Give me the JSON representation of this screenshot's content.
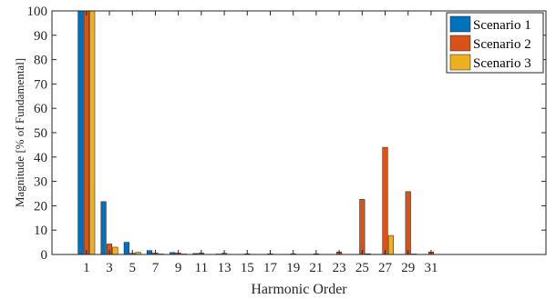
{
  "chart_data": {
    "type": "bar",
    "xlabel": "Harmonic Order",
    "ylabel": "Magnitude [% of Fundamental]",
    "ylim": [
      0,
      100
    ],
    "yticks": [
      0,
      10,
      20,
      30,
      40,
      50,
      60,
      70,
      80,
      90,
      100
    ],
    "xlim": [
      -2,
      41
    ],
    "categories": [
      1,
      3,
      5,
      7,
      9,
      11,
      13,
      15,
      17,
      19,
      21,
      23,
      25,
      27,
      29,
      31
    ],
    "grid": false,
    "legend_position": "top-right",
    "series": [
      {
        "name": "Scenario 1",
        "color": "#0072BD",
        "values": [
          100,
          21.7,
          5.0,
          1.6,
          0.8,
          0.4,
          0.2,
          0.1,
          0.1,
          0.1,
          0.1,
          0.1,
          0.1,
          0.1,
          0.1,
          0.1
        ]
      },
      {
        "name": "Scenario 2",
        "color": "#D95319",
        "values": [
          100,
          4.3,
          0.5,
          0.6,
          0.6,
          0.6,
          0.5,
          0.3,
          0.3,
          0.3,
          0.3,
          1.0,
          22.6,
          44.0,
          25.8,
          1.0
        ]
      },
      {
        "name": "Scenario 3",
        "color": "#EDB120",
        "values": [
          100,
          3.0,
          0.9,
          0.2,
          0.2,
          0.1,
          0.1,
          0.1,
          0.1,
          0.1,
          0.1,
          0.1,
          0.3,
          7.8,
          0.2,
          0.1
        ]
      }
    ]
  }
}
